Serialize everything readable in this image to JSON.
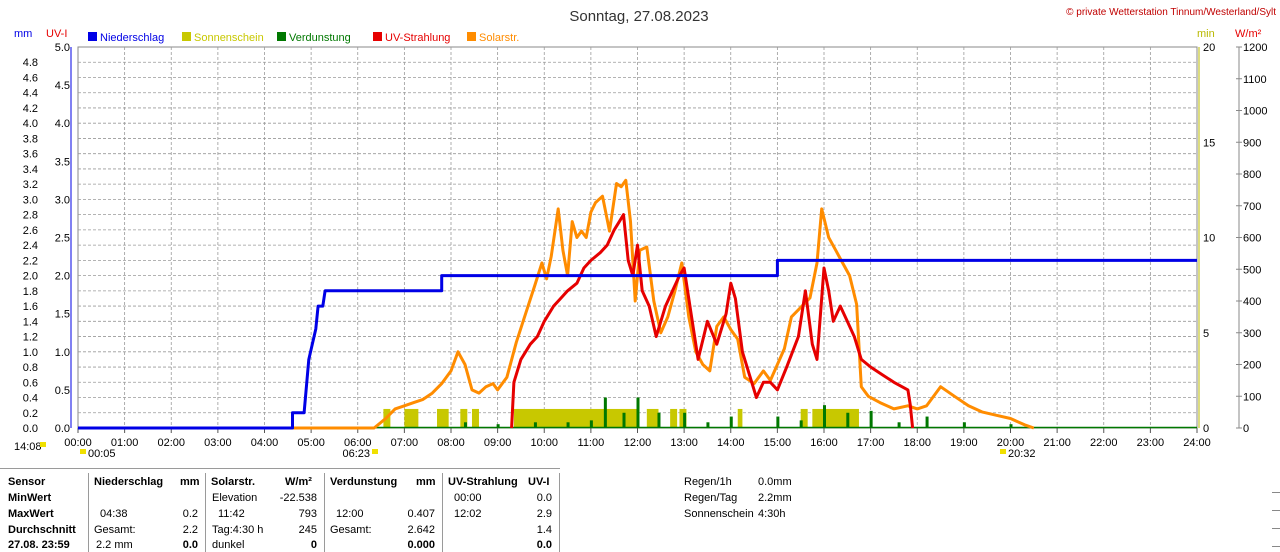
{
  "title": "Sonntag, 27.08.2023",
  "copyright": "© private Wetterstation Tinnum/Westerland/Sylt",
  "colors": {
    "niederschlag": "#0000e6",
    "sonnenschein": "#c8c800",
    "verdunstung": "#007800",
    "uv": "#e60000",
    "solar": "#ff8c00"
  },
  "chart_data": {
    "type": "line",
    "title": "Sonntag, 27.08.2023",
    "axes": {
      "left_mm": {
        "label": "mm",
        "min": 0,
        "max": 5.0,
        "ticks": [
          "0.0",
          "0.2",
          "0.4",
          "0.6",
          "0.8",
          "1.0",
          "1.2",
          "1.4",
          "1.6",
          "1.8",
          "2.0",
          "2.2",
          "2.4",
          "2.6",
          "2.8",
          "3.0",
          "3.2",
          "3.4",
          "3.6",
          "3.8",
          "4.0",
          "4.2",
          "4.4",
          "4.6",
          "4.8"
        ]
      },
      "left_uv": {
        "label": "UV-I",
        "min": 0,
        "max": 5.0,
        "ticks": [
          "0.0",
          "0.5",
          "1.0",
          "1.5",
          "2.0",
          "2.5",
          "3.0",
          "3.5",
          "4.0",
          "4.5",
          "5.0"
        ]
      },
      "right_min": {
        "label": "min",
        "min": 0,
        "max": 20,
        "ticks": [
          "0",
          "5",
          "10",
          "15",
          "20"
        ]
      },
      "right_wm2": {
        "label": "W/m²",
        "min": 0,
        "max": 1200,
        "ticks": [
          "0",
          "100",
          "200",
          "300",
          "400",
          "500",
          "600",
          "700",
          "800",
          "900",
          "1000",
          "1100",
          "1200"
        ]
      },
      "x": {
        "min": 0,
        "max": 24,
        "ticks": [
          "00:00",
          "01:00",
          "02:00",
          "03:00",
          "04:00",
          "05:00",
          "06:00",
          "07:00",
          "08:00",
          "09:00",
          "10:00",
          "11:00",
          "12:00",
          "13:00",
          "14:00",
          "15:00",
          "16:00",
          "17:00",
          "18:00",
          "19:00",
          "20:00",
          "21:00",
          "22:00",
          "23:00",
          "24:00"
        ]
      }
    },
    "legend": [
      {
        "name": "Niederschlag",
        "color": "#0000e6"
      },
      {
        "name": "Sonnenschein",
        "color": "#c8c800"
      },
      {
        "name": "Verdunstung",
        "color": "#007800"
      },
      {
        "name": "UV-Strahlung",
        "color": "#e60000"
      },
      {
        "name": "Solarstr.",
        "color": "#ff8c00"
      }
    ],
    "series": [
      {
        "name": "Niederschlag",
        "axis": "left_mm",
        "x": [
          0,
          4.6,
          4.6,
          4.85,
          4.95,
          5.1,
          5.15,
          5.25,
          5.3,
          7.8,
          7.8,
          15.0,
          15.0,
          24.0
        ],
        "y": [
          0,
          0,
          0.2,
          0.2,
          0.9,
          1.3,
          1.6,
          1.6,
          1.8,
          1.8,
          2.0,
          2.0,
          2.2,
          2.2
        ]
      },
      {
        "name": "UV-Strahlung",
        "axis": "left_uv",
        "x": [
          9.3,
          9.35,
          9.5,
          9.7,
          9.85,
          10.0,
          10.2,
          10.35,
          10.5,
          10.7,
          10.85,
          11.0,
          11.2,
          11.35,
          11.5,
          11.6,
          11.7,
          11.8,
          11.9,
          12.0,
          12.1,
          12.25,
          12.4,
          12.6,
          12.75,
          12.9,
          13.0,
          13.15,
          13.3,
          13.5,
          13.7,
          13.9,
          14.0,
          14.1,
          14.25,
          14.4,
          14.55,
          14.7,
          14.85,
          15.0,
          15.2,
          15.45,
          15.6,
          15.75,
          15.85,
          16.0,
          16.1,
          16.2,
          16.35,
          16.5,
          16.65,
          16.8,
          17.0,
          17.25,
          17.5,
          17.8,
          17.85,
          17.9
        ],
        "y": [
          0.0,
          0.6,
          0.9,
          1.1,
          1.2,
          1.4,
          1.6,
          1.7,
          1.8,
          1.9,
          2.1,
          2.2,
          2.3,
          2.4,
          2.6,
          2.7,
          2.8,
          2.2,
          2.0,
          2.4,
          1.8,
          1.6,
          1.2,
          1.6,
          1.8,
          2.0,
          2.1,
          1.5,
          0.9,
          1.4,
          1.1,
          1.5,
          1.9,
          1.7,
          1.0,
          0.7,
          0.4,
          0.6,
          0.6,
          0.5,
          0.8,
          1.2,
          1.8,
          1.1,
          0.9,
          2.1,
          1.8,
          1.4,
          1.6,
          1.4,
          1.2,
          0.9,
          0.8,
          0.7,
          0.6,
          0.5,
          0.3,
          0.0
        ]
      },
      {
        "name": "Solarstr.",
        "axis": "right_wm2",
        "x": [
          0,
          6.35,
          6.6,
          6.8,
          7.0,
          7.2,
          7.4,
          7.6,
          7.8,
          8.0,
          8.15,
          8.3,
          8.45,
          8.6,
          8.75,
          8.9,
          9.0,
          9.2,
          9.4,
          9.6,
          9.8,
          9.95,
          10.05,
          10.15,
          10.3,
          10.4,
          10.5,
          10.6,
          10.7,
          10.8,
          10.9,
          11.0,
          11.1,
          11.25,
          11.4,
          11.55,
          11.65,
          11.75,
          11.85,
          11.95,
          12.05,
          12.2,
          12.35,
          12.5,
          12.65,
          12.8,
          12.95,
          13.1,
          13.25,
          13.4,
          13.55,
          13.7,
          13.85,
          14.0,
          14.15,
          14.3,
          14.5,
          14.7,
          14.85,
          15.0,
          15.15,
          15.3,
          15.5,
          15.7,
          15.85,
          15.95,
          16.1,
          16.25,
          16.4,
          16.55,
          16.7,
          16.8,
          16.95,
          17.2,
          17.5,
          17.8,
          18.0,
          18.2,
          18.5,
          18.8,
          19.1,
          19.4,
          19.7,
          20.0,
          20.3,
          20.5
        ],
        "y": [
          0,
          0,
          30,
          60,
          70,
          80,
          90,
          110,
          140,
          180,
          240,
          200,
          120,
          110,
          130,
          140,
          120,
          160,
          270,
          360,
          450,
          520,
          470,
          540,
          690,
          560,
          480,
          650,
          600,
          620,
          600,
          680,
          710,
          730,
          620,
          770,
          760,
          780,
          650,
          400,
          560,
          570,
          400,
          300,
          350,
          430,
          520,
          350,
          240,
          200,
          180,
          320,
          350,
          310,
          280,
          160,
          140,
          180,
          150,
          200,
          250,
          350,
          380,
          410,
          520,
          690,
          600,
          560,
          520,
          480,
          390,
          130,
          100,
          80,
          60,
          70,
          60,
          70,
          130,
          100,
          70,
          50,
          40,
          30,
          10,
          0
        ]
      }
    ],
    "bars": [
      {
        "name": "Sonnenschein",
        "axis": "right_min",
        "segments": [
          [
            6.55,
            6.7
          ],
          [
            7.0,
            7.3
          ],
          [
            7.7,
            7.95
          ],
          [
            8.2,
            8.35
          ],
          [
            8.45,
            8.6
          ],
          [
            9.35,
            12.0
          ],
          [
            12.2,
            12.45
          ],
          [
            12.7,
            12.85
          ],
          [
            12.9,
            13.05
          ],
          [
            14.15,
            14.25
          ],
          [
            15.5,
            15.65
          ],
          [
            15.75,
            16.75
          ]
        ],
        "value": 1
      },
      {
        "name": "Verdunstung",
        "axis": "right_min",
        "x": [
          8.3,
          9.0,
          9.8,
          10.5,
          11.0,
          11.3,
          11.7,
          12.0,
          12.45,
          13.0,
          13.5,
          14.0,
          15.0,
          15.5,
          16.0,
          16.5,
          17.0,
          17.6,
          18.2,
          19.0,
          20.0
        ],
        "y": [
          0.3,
          0.2,
          0.3,
          0.3,
          0.4,
          1.6,
          0.8,
          1.6,
          0.8,
          0.8,
          0.3,
          0.6,
          0.6,
          0.4,
          1.2,
          0.8,
          0.9,
          0.3,
          0.6,
          0.3,
          0.2
        ]
      }
    ],
    "markers": [
      {
        "label": "14:08"
      },
      {
        "label": "00:05"
      },
      {
        "label": "06:23"
      },
      {
        "label": "20:32"
      }
    ]
  },
  "stats": {
    "sensor": {
      "head": "Sensor",
      "min": "MinWert",
      "max": "MaxWert",
      "avg": "Durchschnitt",
      "last": "27.08. 23:59"
    },
    "niederschlag": {
      "head": "Niederschlag",
      "unit": "mm",
      "max_time": "04:38",
      "max_val": "0.2",
      "gesamt_lbl": "Gesamt:",
      "gesamt_val": "2.2",
      "last_val": "2.2 mm",
      "last_bold": "0.0"
    },
    "solar": {
      "head": "Solarstr.",
      "unit": "W/m²",
      "elev_lbl": "Elevation",
      "elev_val": "-22.538",
      "max_time": "11:42",
      "max_val": "793",
      "tag_lbl": "Tag:4:30 h",
      "tag_val": "245",
      "last_lbl": "dunkel",
      "last_val": "0"
    },
    "verdunstung": {
      "head": "Verdunstung",
      "unit": "mm",
      "max_time": "12:00",
      "max_val": "0.407",
      "gesamt_lbl": "Gesamt:",
      "gesamt_val": "2.642",
      "last_val": "0.000"
    },
    "uv": {
      "head": "UV-Strahlung",
      "unit": "UV-I",
      "min_time": "00:00",
      "min_val": "0.0",
      "max_time": "12:02",
      "max_val": "2.9",
      "avg_val": "1.4",
      "last_val": "0.0"
    },
    "extra": [
      {
        "label": "Regen/1h",
        "value": "0.0mm"
      },
      {
        "label": "Regen/Tag",
        "value": "2.2mm"
      },
      {
        "label": "Sonnenschein",
        "value": "4:30h"
      }
    ]
  }
}
